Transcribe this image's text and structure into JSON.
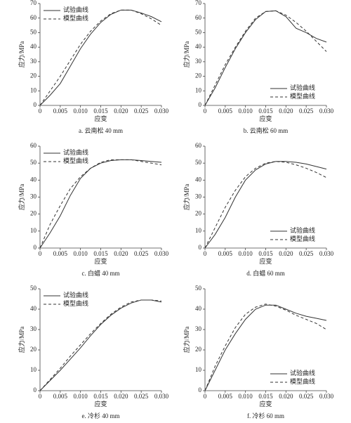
{
  "chart_data": [
    {
      "type": "line",
      "caption": "a. 云南松 40 mm",
      "xlabel": "应变",
      "ylabel": "应力/MPa",
      "legend": "upper left",
      "x": [
        0,
        0.0025,
        0.005,
        0.0075,
        0.01,
        0.0125,
        0.015,
        0.0175,
        0.02,
        0.0225,
        0.025,
        0.0275,
        0.03
      ],
      "series": [
        {
          "name": "试验曲线",
          "color": "#333333",
          "line_style": "solid",
          "values": [
            0,
            7,
            15,
            27,
            39,
            49,
            57,
            62.5,
            65.5,
            65.5,
            63.5,
            61,
            57.5
          ]
        },
        {
          "name": "模型曲线",
          "color": "#333333",
          "line_style": "dashed",
          "values": [
            0,
            10,
            20,
            31,
            42,
            51,
            58,
            63,
            65.5,
            65.5,
            63,
            59.5,
            55
          ]
        }
      ],
      "xlim": [
        0,
        0.03
      ],
      "xticks": [
        0,
        0.005,
        {
          "value": 0.01,
          "label": "0.010"
        },
        0.015,
        {
          "value": 0.02,
          "label": "0.020"
        },
        0.025,
        {
          "value": 0.03,
          "label": "0.030"
        }
      ],
      "ylim": [
        0,
        70
      ],
      "yticks": [
        0,
        10,
        20,
        30,
        40,
        50,
        60,
        70
      ]
    },
    {
      "type": "line",
      "caption": "b. 云南松 60 mm",
      "xlabel": "应变",
      "ylabel": "应力/MPa",
      "legend": "lower right",
      "x": [
        0,
        0.0025,
        0.005,
        0.0075,
        0.01,
        0.0125,
        0.015,
        0.0175,
        0.02,
        0.0225,
        0.025,
        0.0275,
        0.03
      ],
      "series": [
        {
          "name": "试验曲线",
          "color": "#333333",
          "line_style": "solid",
          "values": [
            0,
            12,
            26,
            39,
            50,
            59,
            64.5,
            65,
            61,
            53,
            50,
            46,
            43.5
          ]
        },
        {
          "name": "模型曲线",
          "color": "#333333",
          "line_style": "dashed",
          "values": [
            0,
            14,
            28,
            40,
            51,
            60,
            64.5,
            65,
            62,
            57,
            51,
            44,
            37
          ]
        }
      ],
      "xlim": [
        0,
        0.03
      ],
      "xticks": [
        0,
        0.005,
        {
          "value": 0.01,
          "label": "0.010"
        },
        0.015,
        {
          "value": 0.02,
          "label": "0.020"
        },
        0.025,
        {
          "value": 0.03,
          "label": "0.030"
        }
      ],
      "ylim": [
        0,
        70
      ],
      "yticks": [
        0,
        10,
        20,
        30,
        40,
        50,
        60,
        70
      ]
    },
    {
      "type": "line",
      "caption": "c. 白蜡 40 mm",
      "xlabel": "应变",
      "ylabel": "应力/MPa",
      "legend": "upper left",
      "x": [
        0,
        0.0025,
        0.005,
        0.0075,
        0.01,
        0.0125,
        0.015,
        0.0175,
        0.02,
        0.0225,
        0.025,
        0.0275,
        0.03
      ],
      "series": [
        {
          "name": "试验曲线",
          "color": "#333333",
          "line_style": "solid",
          "values": [
            0,
            9,
            19,
            31,
            41,
            47,
            50,
            51.5,
            52,
            52,
            51.5,
            51,
            50.5
          ]
        },
        {
          "name": "模型曲线",
          "color": "#333333",
          "line_style": "dashed",
          "values": [
            0,
            14,
            25,
            35,
            42,
            47,
            50.5,
            52,
            52,
            52,
            51,
            50,
            49
          ]
        }
      ],
      "xlim": [
        0,
        0.03
      ],
      "xticks": [
        0,
        0.005,
        {
          "value": 0.01,
          "label": "0.010"
        },
        0.015,
        {
          "value": 0.02,
          "label": "0.020"
        },
        0.025,
        {
          "value": 0.03,
          "label": "0.030"
        }
      ],
      "ylim": [
        0,
        60
      ],
      "yticks": [
        0,
        10,
        20,
        30,
        40,
        50,
        60
      ]
    },
    {
      "type": "line",
      "caption": "d. 白蜡 60 mm",
      "xlabel": "应变",
      "ylabel": "应力/MPa",
      "legend": "lower right",
      "x": [
        0,
        0.0025,
        0.005,
        0.0075,
        0.01,
        0.0125,
        0.015,
        0.0175,
        0.02,
        0.0225,
        0.025,
        0.0275,
        0.03
      ],
      "series": [
        {
          "name": "试验曲线",
          "color": "#333333",
          "line_style": "solid",
          "values": [
            0,
            8,
            18,
            30,
            40,
            46,
            49.5,
            51,
            51,
            50.5,
            49.5,
            48,
            46.5
          ]
        },
        {
          "name": "模型曲线",
          "color": "#333333",
          "line_style": "dashed",
          "values": [
            0,
            12,
            24,
            34,
            42,
            47,
            50,
            51,
            50.5,
            49,
            47,
            44.5,
            41.5
          ]
        }
      ],
      "xlim": [
        0,
        0.03
      ],
      "xticks": [
        0,
        0.005,
        {
          "value": 0.01,
          "label": "0.010"
        },
        0.015,
        {
          "value": 0.02,
          "label": "0.020"
        },
        0.025,
        {
          "value": 0.03,
          "label": "0.030"
        }
      ],
      "ylim": [
        0,
        60
      ],
      "yticks": [
        0,
        10,
        20,
        30,
        40,
        50,
        60
      ]
    },
    {
      "type": "line",
      "caption": "e. 冷杉 40 mm",
      "xlabel": "应变",
      "ylabel": "应力/MPa",
      "legend": "upper left",
      "x": [
        0,
        0.0025,
        0.005,
        0.0075,
        0.01,
        0.0125,
        0.015,
        0.0175,
        0.02,
        0.0225,
        0.025,
        0.0275,
        0.03
      ],
      "series": [
        {
          "name": "试验曲线",
          "color": "#333333",
          "line_style": "solid",
          "values": [
            0,
            5,
            10,
            15.5,
            21,
            27,
            32.5,
            37,
            40.5,
            43,
            44.5,
            44.5,
            43.5
          ]
        },
        {
          "name": "模型曲线",
          "color": "#333333",
          "line_style": "dashed",
          "values": [
            0,
            5.5,
            11,
            17,
            22.5,
            28,
            33,
            37.5,
            41,
            43.5,
            44.5,
            44.5,
            44
          ]
        }
      ],
      "xlim": [
        0,
        0.03
      ],
      "xticks": [
        0,
        0.005,
        {
          "value": 0.01,
          "label": "0.010"
        },
        0.015,
        {
          "value": 0.02,
          "label": "0.020"
        },
        0.025,
        {
          "value": 0.03,
          "label": "0.030"
        }
      ],
      "ylim": [
        0,
        50
      ],
      "yticks": [
        0,
        10,
        20,
        30,
        40,
        50
      ]
    },
    {
      "type": "line",
      "caption": "f. 冷杉 60 mm",
      "xlabel": "应变",
      "ylabel": "应力/MPa",
      "legend": "lower right",
      "x": [
        0,
        0.0025,
        0.005,
        0.0075,
        0.01,
        0.0125,
        0.015,
        0.0175,
        0.02,
        0.0225,
        0.025,
        0.0275,
        0.03
      ],
      "series": [
        {
          "name": "试验曲线",
          "color": "#333333",
          "line_style": "solid",
          "values": [
            0,
            10,
            20,
            28,
            35,
            40,
            42,
            42,
            40,
            38,
            36.5,
            35.5,
            34.5
          ]
        },
        {
          "name": "模型曲线",
          "color": "#333333",
          "line_style": "dashed",
          "values": [
            0,
            12,
            22,
            31,
            37.5,
            41,
            42.5,
            41.5,
            39.5,
            37,
            35,
            33,
            30
          ]
        }
      ],
      "xlim": [
        0,
        0.03
      ],
      "xticks": [
        0,
        0.005,
        {
          "value": 0.01,
          "label": "0.010"
        },
        0.015,
        {
          "value": 0.02,
          "label": "0.020"
        },
        0.025,
        {
          "value": 0.03,
          "label": "0.030"
        }
      ],
      "ylim": [
        0,
        50
      ],
      "yticks": [
        0,
        10,
        20,
        30,
        40,
        50
      ]
    }
  ]
}
